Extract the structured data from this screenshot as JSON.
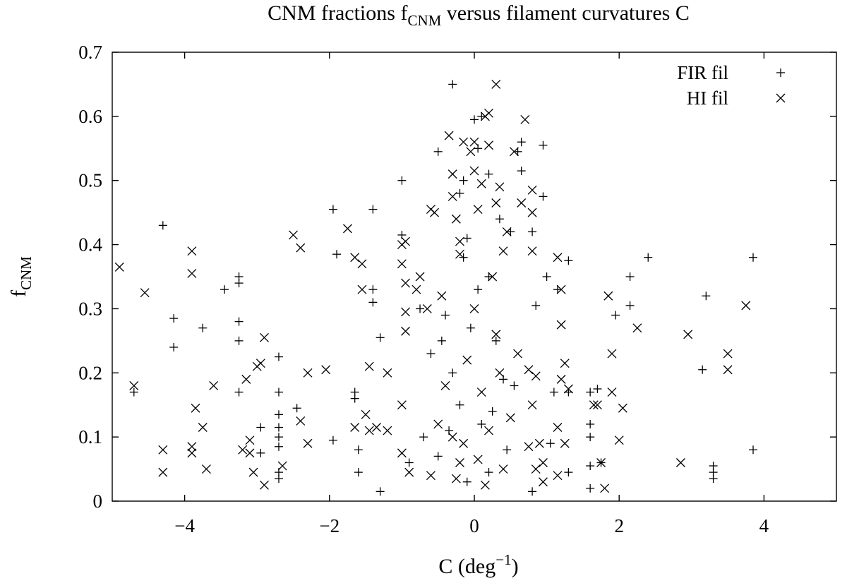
{
  "chart_data": {
    "type": "scatter",
    "title": {
      "main": "CNM fractions f",
      "sub": "CNM",
      "rest": " versus filament curvatures C"
    },
    "xlabel": {
      "main": "C (deg",
      "sup": "−1",
      "close": ")"
    },
    "ylabel": {
      "main": "f",
      "sub": "CNM"
    },
    "xlim": [
      -5,
      5
    ],
    "ylim": [
      0,
      0.7
    ],
    "xticks": [
      {
        "v": -4,
        "label": "−4"
      },
      {
        "v": -2,
        "label": "−2"
      },
      {
        "v": 0,
        "label": "0"
      },
      {
        "v": 2,
        "label": "2"
      },
      {
        "v": 4,
        "label": "4"
      }
    ],
    "yticks": [
      {
        "v": 0,
        "label": "0"
      },
      {
        "v": 0.1,
        "label": "0.1"
      },
      {
        "v": 0.2,
        "label": "0.2"
      },
      {
        "v": 0.3,
        "label": "0.3"
      },
      {
        "v": 0.4,
        "label": "0.4"
      },
      {
        "v": 0.5,
        "label": "0.5"
      },
      {
        "v": 0.6,
        "label": "0.6"
      },
      {
        "v": 0.7,
        "label": "0.7"
      }
    ],
    "grid": false,
    "legend_position": "top-right",
    "series": [
      {
        "name": "FIR fil",
        "marker": "plus",
        "points": [
          [
            -4.3,
            0.43
          ],
          [
            -4.7,
            0.17
          ],
          [
            -4.15,
            0.285
          ],
          [
            -4.15,
            0.24
          ],
          [
            -3.75,
            0.27
          ],
          [
            -3.45,
            0.33
          ],
          [
            -3.25,
            0.35
          ],
          [
            -3.25,
            0.34
          ],
          [
            -3.25,
            0.28
          ],
          [
            -3.25,
            0.25
          ],
          [
            -3.25,
            0.17
          ],
          [
            -2.95,
            0.115
          ],
          [
            -2.95,
            0.075
          ],
          [
            -2.7,
            0.225
          ],
          [
            -2.7,
            0.17
          ],
          [
            -2.7,
            0.135
          ],
          [
            -2.7,
            0.115
          ],
          [
            -2.7,
            0.1
          ],
          [
            -2.7,
            0.085
          ],
          [
            -2.7,
            0.045
          ],
          [
            -2.7,
            0.035
          ],
          [
            -2.45,
            0.145
          ],
          [
            -1.95,
            0.455
          ],
          [
            -1.9,
            0.385
          ],
          [
            -1.95,
            0.095
          ],
          [
            -1.65,
            0.17
          ],
          [
            -1.65,
            0.16
          ],
          [
            -1.6,
            0.08
          ],
          [
            -1.6,
            0.045
          ],
          [
            -1.4,
            0.455
          ],
          [
            -1.4,
            0.33
          ],
          [
            -1.4,
            0.31
          ],
          [
            -1.3,
            0.255
          ],
          [
            -1.3,
            0.015
          ],
          [
            -1.0,
            0.5
          ],
          [
            -1.0,
            0.415
          ],
          [
            -0.9,
            0.06
          ],
          [
            -0.75,
            0.3
          ],
          [
            -0.7,
            0.1
          ],
          [
            -0.5,
            0.545
          ],
          [
            -0.45,
            0.25
          ],
          [
            -0.4,
            0.29
          ],
          [
            -0.3,
            0.65
          ],
          [
            -0.2,
            0.48
          ],
          [
            -0.15,
            0.5
          ],
          [
            -0.1,
            0.41
          ],
          [
            0,
            0.595
          ],
          [
            0.05,
            0.55
          ],
          [
            0.1,
            0.6
          ],
          [
            0.2,
            0.51
          ],
          [
            0.2,
            0.35
          ],
          [
            0.35,
            0.44
          ],
          [
            0.5,
            0.42
          ],
          [
            0.6,
            0.545
          ],
          [
            0.65,
            0.56
          ],
          [
            0.65,
            0.515
          ],
          [
            0.8,
            0.42
          ],
          [
            0.85,
            0.305
          ],
          [
            0.95,
            0.555
          ],
          [
            0.95,
            0.475
          ],
          [
            1.0,
            0.35
          ],
          [
            1.05,
            0.09
          ],
          [
            1.1,
            0.17
          ],
          [
            1.15,
            0.33
          ],
          [
            1.3,
            0.375
          ],
          [
            1.3,
            0.17
          ],
          [
            1.3,
            0.045
          ],
          [
            1.6,
            0.17
          ],
          [
            1.6,
            0.12
          ],
          [
            1.6,
            0.1
          ],
          [
            1.6,
            0.055
          ],
          [
            1.6,
            0.02
          ],
          [
            1.7,
            0.175
          ],
          [
            1.75,
            0.06
          ],
          [
            1.95,
            0.29
          ],
          [
            2.15,
            0.35
          ],
          [
            2.15,
            0.305
          ],
          [
            2.4,
            0.38
          ],
          [
            3.15,
            0.205
          ],
          [
            3.2,
            0.32
          ],
          [
            3.3,
            0.055
          ],
          [
            3.3,
            0.045
          ],
          [
            3.3,
            0.035
          ],
          [
            3.85,
            0.38
          ],
          [
            3.85,
            0.08
          ],
          [
            0.8,
            0.015
          ],
          [
            -0.3,
            0.2
          ],
          [
            0.1,
            0.12
          ],
          [
            -0.2,
            0.15
          ],
          [
            0.3,
            0.25
          ],
          [
            -0.5,
            0.07
          ],
          [
            0.45,
            0.08
          ],
          [
            -0.1,
            0.03
          ],
          [
            0.2,
            0.045
          ],
          [
            0.55,
            0.18
          ],
          [
            -0.6,
            0.23
          ],
          [
            0.05,
            0.33
          ],
          [
            -0.05,
            0.27
          ],
          [
            0.25,
            0.14
          ],
          [
            -0.35,
            0.11
          ],
          [
            0.4,
            0.19
          ],
          [
            -0.15,
            0.38
          ]
        ]
      },
      {
        "name": "HI fil",
        "marker": "cross",
        "points": [
          [
            -4.9,
            0.365
          ],
          [
            -4.55,
            0.325
          ],
          [
            -4.7,
            0.18
          ],
          [
            -4.3,
            0.08
          ],
          [
            -4.3,
            0.045
          ],
          [
            -3.9,
            0.39
          ],
          [
            -3.9,
            0.355
          ],
          [
            -3.85,
            0.145
          ],
          [
            -3.9,
            0.085
          ],
          [
            -3.9,
            0.075
          ],
          [
            -3.75,
            0.115
          ],
          [
            -3.7,
            0.05
          ],
          [
            -3.6,
            0.18
          ],
          [
            -3.2,
            0.08
          ],
          [
            -3.15,
            0.19
          ],
          [
            -3.1,
            0.095
          ],
          [
            -3.1,
            0.075
          ],
          [
            -3.05,
            0.045
          ],
          [
            -3.0,
            0.21
          ],
          [
            -2.95,
            0.215
          ],
          [
            -2.9,
            0.255
          ],
          [
            -2.9,
            0.025
          ],
          [
            -2.65,
            0.055
          ],
          [
            -2.5,
            0.415
          ],
          [
            -2.4,
            0.395
          ],
          [
            -2.4,
            0.125
          ],
          [
            -2.3,
            0.2
          ],
          [
            -2.3,
            0.09
          ],
          [
            -2.05,
            0.205
          ],
          [
            -1.75,
            0.425
          ],
          [
            -1.65,
            0.38
          ],
          [
            -1.55,
            0.37
          ],
          [
            -1.55,
            0.33
          ],
          [
            -1.5,
            0.135
          ],
          [
            -1.65,
            0.115
          ],
          [
            -1.45,
            0.21
          ],
          [
            -1.45,
            0.11
          ],
          [
            -1.35,
            0.115
          ],
          [
            -1.2,
            0.2
          ],
          [
            -1.2,
            0.11
          ],
          [
            -1.0,
            0.4
          ],
          [
            -0.95,
            0.405
          ],
          [
            -1.0,
            0.37
          ],
          [
            -0.95,
            0.34
          ],
          [
            -0.95,
            0.295
          ],
          [
            -0.95,
            0.265
          ],
          [
            -1.0,
            0.15
          ],
          [
            -1.0,
            0.075
          ],
          [
            -0.9,
            0.045
          ],
          [
            -0.8,
            0.33
          ],
          [
            -0.75,
            0.35
          ],
          [
            -0.65,
            0.3
          ],
          [
            -0.6,
            0.455
          ],
          [
            -0.55,
            0.45
          ],
          [
            -0.35,
            0.57
          ],
          [
            -0.3,
            0.51
          ],
          [
            -0.3,
            0.475
          ],
          [
            -0.25,
            0.44
          ],
          [
            -0.2,
            0.405
          ],
          [
            -0.2,
            0.385
          ],
          [
            -0.15,
            0.56
          ],
          [
            -0.05,
            0.545
          ],
          [
            0,
            0.515
          ],
          [
            0,
            0.56
          ],
          [
            0.05,
            0.455
          ],
          [
            0.1,
            0.495
          ],
          [
            0.15,
            0.6
          ],
          [
            0.2,
            0.605
          ],
          [
            0.3,
            0.65
          ],
          [
            0.2,
            0.555
          ],
          [
            0.3,
            0.465
          ],
          [
            0.35,
            0.49
          ],
          [
            0.4,
            0.39
          ],
          [
            0.45,
            0.42
          ],
          [
            0.55,
            0.545
          ],
          [
            0.65,
            0.465
          ],
          [
            0.7,
            0.595
          ],
          [
            0.75,
            0.205
          ],
          [
            0.8,
            0.485
          ],
          [
            0.8,
            0.45
          ],
          [
            0.8,
            0.39
          ],
          [
            0.85,
            0.195
          ],
          [
            0.8,
            0.15
          ],
          [
            0.75,
            0.085
          ],
          [
            0.85,
            0.05
          ],
          [
            0.9,
            0.09
          ],
          [
            0.95,
            0.06
          ],
          [
            0.95,
            0.03
          ],
          [
            1.15,
            0.38
          ],
          [
            1.2,
            0.275
          ],
          [
            1.2,
            0.33
          ],
          [
            1.25,
            0.215
          ],
          [
            1.2,
            0.19
          ],
          [
            1.25,
            0.09
          ],
          [
            1.15,
            0.115
          ],
          [
            1.15,
            0.04
          ],
          [
            1.3,
            0.175
          ],
          [
            1.65,
            0.15
          ],
          [
            1.7,
            0.15
          ],
          [
            1.75,
            0.06
          ],
          [
            1.8,
            0.02
          ],
          [
            1.85,
            0.32
          ],
          [
            1.9,
            0.23
          ],
          [
            1.9,
            0.17
          ],
          [
            2.0,
            0.095
          ],
          [
            2.05,
            0.145
          ],
          [
            2.25,
            0.27
          ],
          [
            2.85,
            0.06
          ],
          [
            2.95,
            0.26
          ],
          [
            3.5,
            0.23
          ],
          [
            3.5,
            0.205
          ],
          [
            3.75,
            0.305
          ],
          [
            -0.4,
            0.18
          ],
          [
            -0.3,
            0.1
          ],
          [
            -0.2,
            0.06
          ],
          [
            -0.1,
            0.22
          ],
          [
            0,
            0.3
          ],
          [
            0.1,
            0.17
          ],
          [
            0.2,
            0.11
          ],
          [
            0.3,
            0.26
          ],
          [
            0.4,
            0.05
          ],
          [
            0.5,
            0.13
          ],
          [
            -0.5,
            0.12
          ],
          [
            -0.6,
            0.04
          ],
          [
            0.6,
            0.23
          ],
          [
            -0.45,
            0.32
          ],
          [
            0.25,
            0.35
          ],
          [
            -0.15,
            0.09
          ],
          [
            0.05,
            0.065
          ],
          [
            0.15,
            0.025
          ],
          [
            -0.25,
            0.035
          ],
          [
            0.35,
            0.2
          ]
        ]
      }
    ]
  }
}
